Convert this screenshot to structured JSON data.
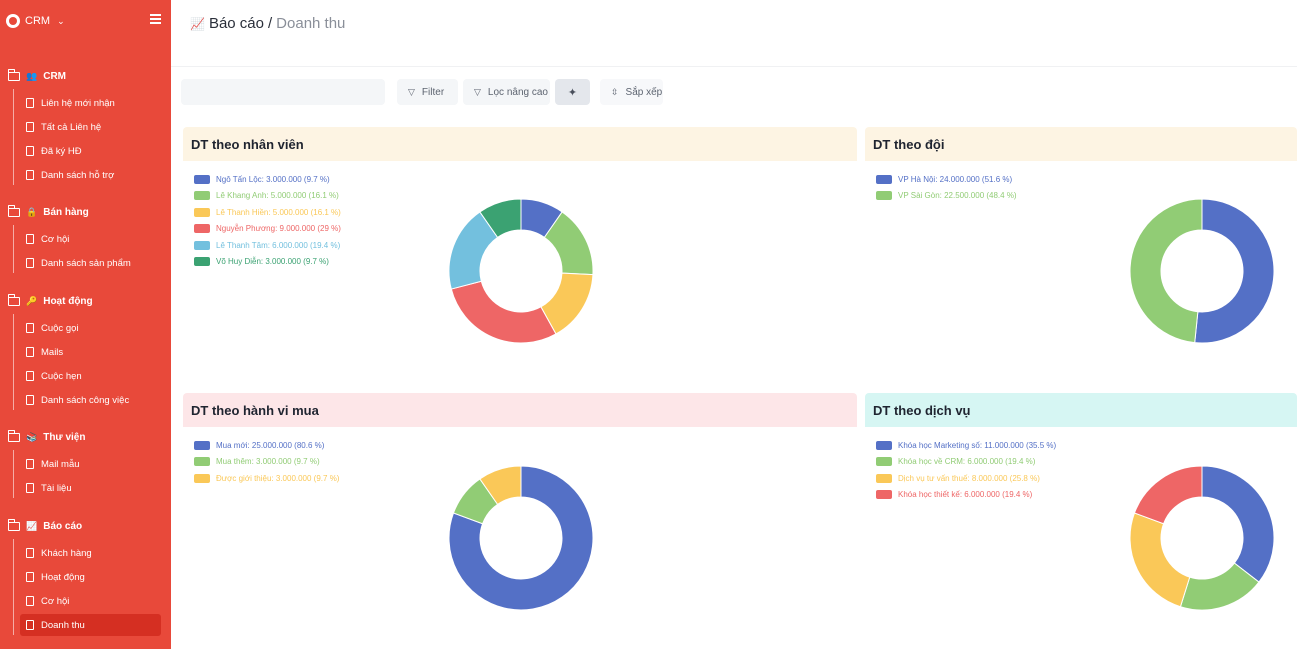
{
  "brand": {
    "name": "CRM"
  },
  "sidebar": {
    "groups": [
      {
        "emoji": "👥",
        "label": "CRM",
        "items": [
          "Liên hệ mới nhận",
          "Tất cả Liên hệ",
          "Đã ký HĐ",
          "Danh sách hỗ trợ"
        ]
      },
      {
        "emoji": "🔒",
        "label": "Bán hàng",
        "items": [
          "Cơ hội",
          "Danh sách sản phẩm"
        ]
      },
      {
        "emoji": "🔑",
        "label": "Hoạt động",
        "items": [
          "Cuộc gọi",
          "Mails",
          "Cuộc hẹn",
          "Danh sách công việc"
        ]
      },
      {
        "emoji": "📚",
        "label": "Thư viện",
        "items": [
          "Mail mẫu",
          "Tài liệu"
        ]
      },
      {
        "emoji": "📈",
        "label": "Báo cáo",
        "items": [
          "Khách hàng",
          "Hoạt động",
          "Cơ hội",
          "Doanh thu"
        ]
      }
    ],
    "active_item": "Doanh thu"
  },
  "page": {
    "title_emoji": "📈",
    "title": "Báo cáo",
    "separator": "/",
    "subtitle": "Doanh thu"
  },
  "toolbar": {
    "search_placeholder": "",
    "filter_label": "Filter",
    "advanced_filter_label": "Lọc nâng cao",
    "sort_label": "Sắp xếp"
  },
  "colors": {
    "sidebar": "#e8493a",
    "active_item": "#d52f22",
    "blue": "#5470c6",
    "green": "#91cc75",
    "yellow": "#fac858",
    "red": "#ee6666",
    "cyan": "#73c0de",
    "teal": "#3ba272"
  },
  "chart_data": [
    {
      "type": "pie",
      "title": "DT theo nhân viên",
      "header_color": "#fdf4e3",
      "legend_labels": [
        "Ngô Tấn Lộc: 3.000.000 (9.7 %)",
        "Lê Khang Anh: 5.000.000 (16.1 %)",
        "Lê Thanh Hiền: 5.000.000 (16.1 %)",
        "Nguyễn Phương: 9.000.000 (29 %)",
        "Lê Thanh Tâm: 6.000.000 (19.4 %)",
        "Võ Huy Diễn: 3.000.000 (9.7 %)"
      ],
      "values": [
        3000000,
        5000000,
        5000000,
        9000000,
        6000000,
        3000000
      ],
      "colors": [
        "#5470c6",
        "#91cc75",
        "#fac858",
        "#ee6666",
        "#73c0de",
        "#3ba272"
      ]
    },
    {
      "type": "pie",
      "title": "DT theo đội",
      "header_color": "#fdf4e3",
      "legend_labels": [
        "VP Hà Nội: 24.000.000 (51.6 %)",
        "VP Sài Gòn: 22.500.000 (48.4 %)"
      ],
      "values": [
        24000000,
        22500000
      ],
      "colors": [
        "#5470c6",
        "#91cc75"
      ]
    },
    {
      "type": "pie",
      "title": "DT theo hành vi mua",
      "header_color": "#fde6e8",
      "legend_labels": [
        "Mua mới: 25.000.000 (80.6 %)",
        "Mua thêm: 3.000.000 (9.7 %)",
        "Được giới thiệu: 3.000.000 (9.7 %)"
      ],
      "values": [
        25000000,
        3000000,
        3000000
      ],
      "colors": [
        "#5470c6",
        "#91cc75",
        "#fac858"
      ]
    },
    {
      "type": "pie",
      "title": "DT theo dịch vụ",
      "header_color": "#d6f6f3",
      "legend_labels": [
        "Khóa học Marketing số: 11.000.000 (35.5 %)",
        "Khóa học về CRM: 6.000.000 (19.4 %)",
        "Dịch vụ tư vấn thuế: 8.000.000 (25.8 %)",
        "Khóa học thiết kế: 6.000.000 (19.4 %)"
      ],
      "values": [
        11000000,
        6000000,
        8000000,
        6000000
      ],
      "colors": [
        "#5470c6",
        "#91cc75",
        "#fac858",
        "#ee6666"
      ]
    }
  ]
}
